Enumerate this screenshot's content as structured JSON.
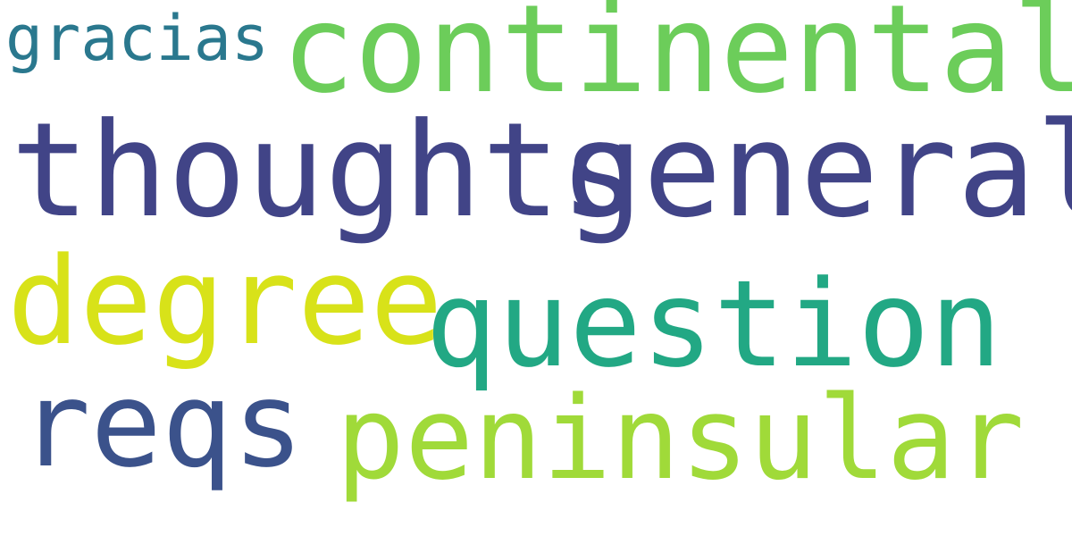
{
  "words": {
    "continental": {
      "text": "continental",
      "color": "#6ccd5a"
    },
    "gracias": {
      "text": "gracias",
      "color": "#2a788e"
    },
    "thoughts": {
      "text": "thoughts",
      "color": "#414487"
    },
    "general": {
      "text": "general",
      "color": "#414487"
    },
    "degree": {
      "text": "degree",
      "color": "#d8e219"
    },
    "question": {
      "text": "question",
      "color": "#22a884"
    },
    "reqs": {
      "text": "reqs",
      "color": "#3b528b"
    },
    "peninsular": {
      "text": "peninsular",
      "color": "#a0da39"
    }
  }
}
